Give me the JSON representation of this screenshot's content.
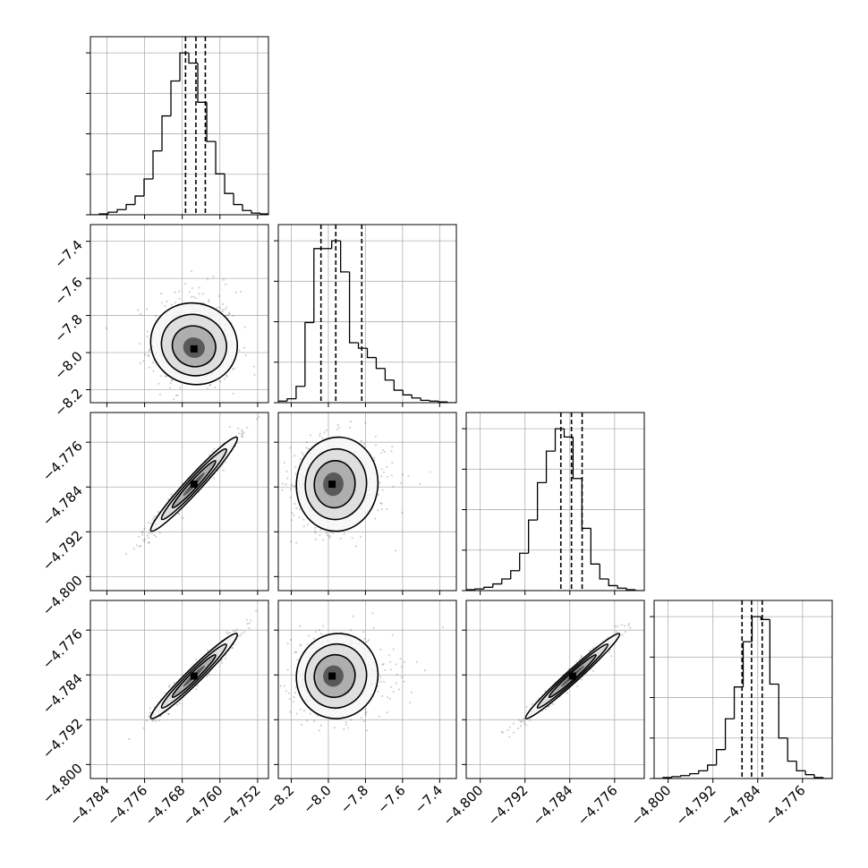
{
  "chart_data": {
    "type": "corner",
    "parameters": [
      {
        "ticks": [
          -4.784,
          -4.776,
          -4.768,
          -4.76,
          -4.752
        ],
        "tick_labels": [
          "−4.784",
          "−4.776",
          "−4.768",
          "−4.760",
          "−4.752"
        ],
        "range": [
          -4.7875,
          -4.7497
        ]
      },
      {
        "ticks": [
          -8.2,
          -8.0,
          -7.8,
          -7.6,
          -7.4
        ],
        "tick_labels": [
          "−8.2",
          "−8.0",
          "−7.8",
          "−7.6",
          "−7.4"
        ],
        "range": [
          -8.27,
          -7.31
        ]
      },
      {
        "ticks": [
          -4.8,
          -4.792,
          -4.784,
          -4.776
        ],
        "tick_labels": [
          "−4.800",
          "−4.792",
          "−4.784",
          "−4.776"
        ],
        "range": [
          -4.8025,
          -4.7707
        ]
      },
      {
        "ticks": [
          -4.8,
          -4.792,
          -4.784,
          -4.776
        ],
        "tick_labels": [
          "−4.800",
          "−4.792",
          "−4.784",
          "−4.776"
        ],
        "range": [
          -4.8025,
          -4.7707
        ]
      }
    ],
    "histograms": [
      {
        "edges_start": -4.7875,
        "bin_width": 0.0019,
        "counts": [
          0,
          1,
          3,
          6,
          12,
          22,
          42,
          75,
          116,
          157,
          190,
          178,
          132,
          86,
          48,
          25,
          12,
          5,
          2,
          1
        ],
        "quantiles": [
          -4.7673,
          -4.7651,
          -4.7631
        ]
      },
      {
        "edges_start": -8.27,
        "bin_width": 0.048,
        "counts": [
          2,
          5,
          21,
          103,
          198,
          198,
          208,
          168,
          77,
          70,
          58,
          44,
          29,
          16,
          10,
          6,
          3,
          2,
          1,
          0
        ],
        "quantiles": [
          -8.04,
          -7.96,
          -7.82
        ]
      },
      {
        "edges_start": -4.8025,
        "bin_width": 0.00159,
        "counts": [
          1,
          2,
          4,
          8,
          14,
          24,
          45,
          85,
          130,
          168,
          195,
          185,
          135,
          75,
          32,
          14,
          6,
          3,
          1,
          0
        ],
        "quantiles": [
          -4.7856,
          -4.7837,
          -4.7818
        ]
      },
      {
        "edges_start": -4.8025,
        "bin_width": 0.00159,
        "counts": [
          0,
          1,
          2,
          3,
          5,
          8,
          14,
          30,
          62,
          95,
          142,
          168,
          165,
          98,
          42,
          18,
          8,
          4,
          1,
          0
        ],
        "quantiles": [
          -4.7868,
          -4.7851,
          -4.7832
        ]
      }
    ],
    "pair_scatter": [
      {
        "x": 0,
        "y": 1,
        "center": [
          -4.7655,
          -7.98
        ],
        "sd": [
          0.0046,
          0.11
        ],
        "corr": -0.05,
        "skew_y": 0.5
      },
      {
        "x": 0,
        "y": 2,
        "center": [
          -4.7655,
          -4.7835
        ],
        "sd": [
          0.0046,
          0.0042
        ],
        "corr": 0.97
      },
      {
        "x": 1,
        "y": 2,
        "center": [
          -7.98,
          -4.7835
        ],
        "sd": [
          0.11,
          0.0042
        ],
        "corr": 0.03,
        "skew_x": 0.5
      },
      {
        "x": 0,
        "y": 3,
        "center": [
          -4.7655,
          -4.7842
        ],
        "sd": [
          0.0046,
          0.0038
        ],
        "corr": 0.97
      },
      {
        "x": 1,
        "y": 3,
        "center": [
          -7.98,
          -4.7842
        ],
        "sd": [
          0.11,
          0.0038
        ],
        "corr": 0.03,
        "skew_x": 0.5
      },
      {
        "x": 2,
        "y": 3,
        "center": [
          -4.7835,
          -4.7842
        ],
        "sd": [
          0.0042,
          0.0038
        ],
        "corr": 0.98
      }
    ],
    "grid": true,
    "xlabels": [
      "",
      "",
      "",
      ""
    ],
    "ylabels": [
      "",
      "",
      "",
      ""
    ]
  }
}
